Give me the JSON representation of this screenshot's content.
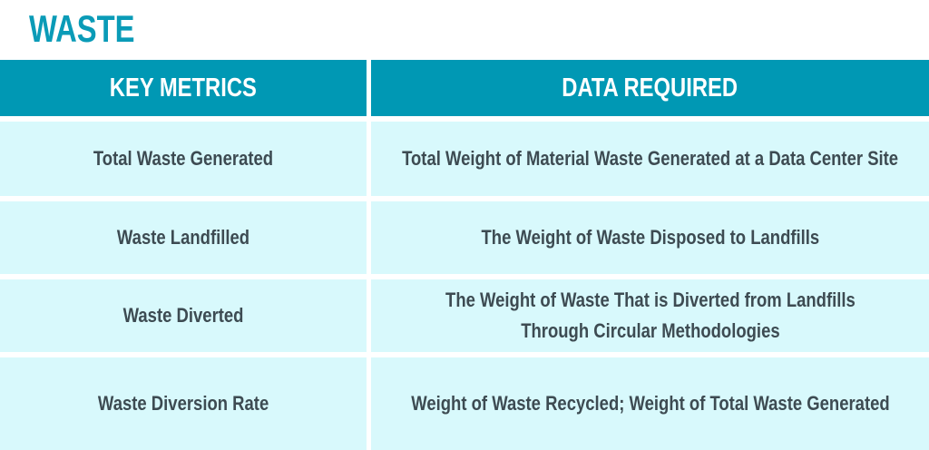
{
  "title": "WASTE",
  "table": {
    "headers": [
      "KEY METRICS",
      "DATA REQUIRED"
    ],
    "rows": [
      {
        "metric": "Total Waste Generated",
        "data": [
          "Total Weight of Material Waste Generated at a Data Center Site"
        ]
      },
      {
        "metric": "Waste Landfilled",
        "data": [
          "The Weight of Waste Disposed to Landfills"
        ]
      },
      {
        "metric": "Waste Diverted",
        "data": [
          "The Weight of Waste That is Diverted from Landfills",
          "Through Circular Methodologies"
        ]
      },
      {
        "metric": "Waste Diversion Rate",
        "data": [
          "Weight of Waste Recycled; Weight of Total Waste Generated"
        ]
      }
    ]
  },
  "colors": {
    "title": "#0a9bb7",
    "header_bg": "#0098b4",
    "header_text": "#ffffff",
    "row_bg": "#d8f9fc",
    "row_text": "#3d4b52"
  }
}
